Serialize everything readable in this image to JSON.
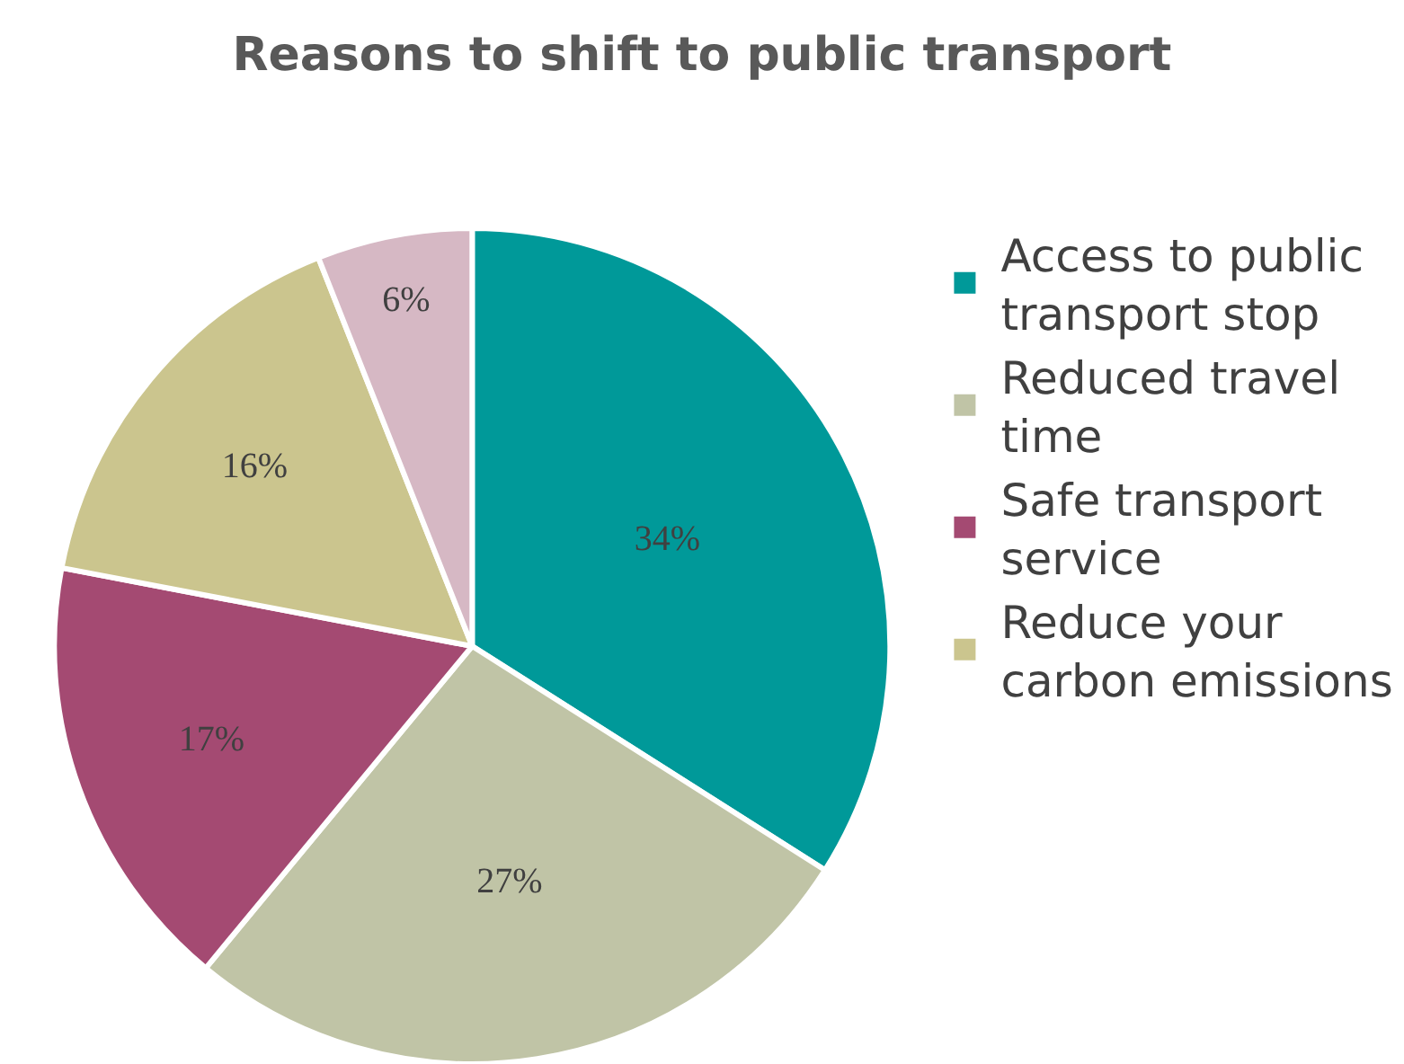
{
  "chart_data": {
    "type": "pie",
    "title": "Reasons to shift to public transport",
    "categories": [
      "Access to public transport stop",
      "Reduced travel time",
      "Safe transport service",
      "Reduce your carbon emissions",
      null
    ],
    "values": [
      34,
      27,
      17,
      16,
      6
    ],
    "value_labels": [
      "34%",
      "27%",
      "17%",
      "16%",
      "6%"
    ],
    "colors": [
      "#009999",
      "#c0c4a6",
      "#a44a72",
      "#cbc58e",
      "#d6b8c4"
    ],
    "legend": "right"
  }
}
